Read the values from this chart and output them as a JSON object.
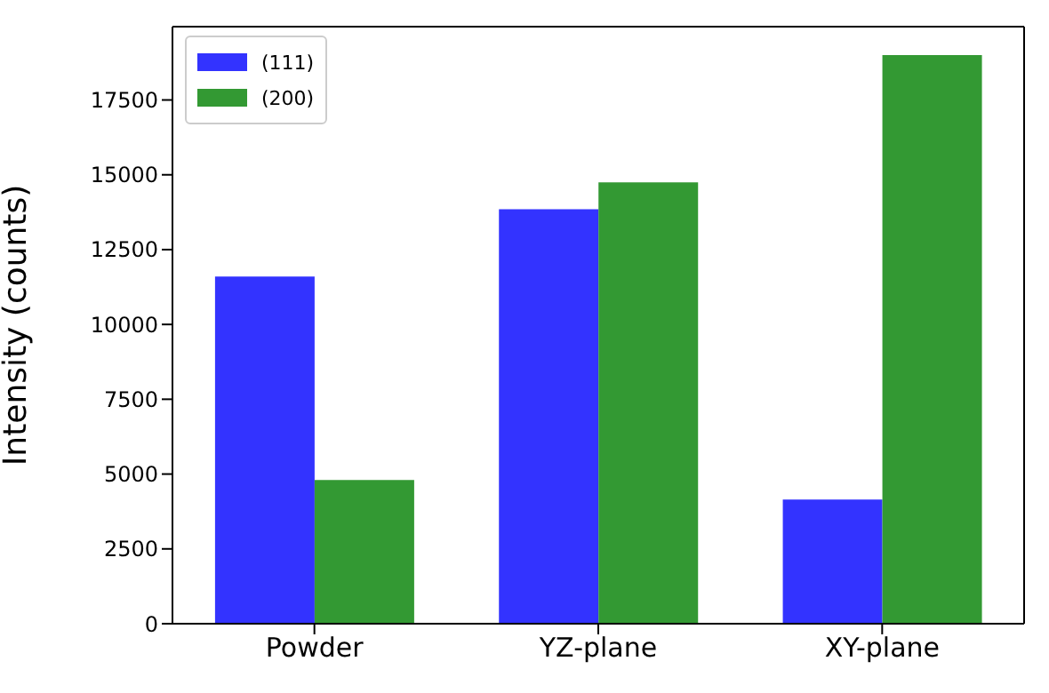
{
  "chart_data": {
    "type": "bar",
    "ylabel": "Intensity (counts)",
    "categories": [
      "Powder",
      "YZ-plane",
      "XY-plane"
    ],
    "series": [
      {
        "name": "(111)",
        "color": "#3333ff",
        "values": [
          11600,
          13850,
          4150
        ]
      },
      {
        "name": "(200)",
        "color": "#339933",
        "values": [
          4800,
          14750,
          19000
        ]
      }
    ],
    "ylim": [
      0,
      19950
    ],
    "yticks": [
      0,
      2500,
      5000,
      7500,
      10000,
      12500,
      15000,
      17500
    ],
    "legend": "top left",
    "grid": false
  }
}
